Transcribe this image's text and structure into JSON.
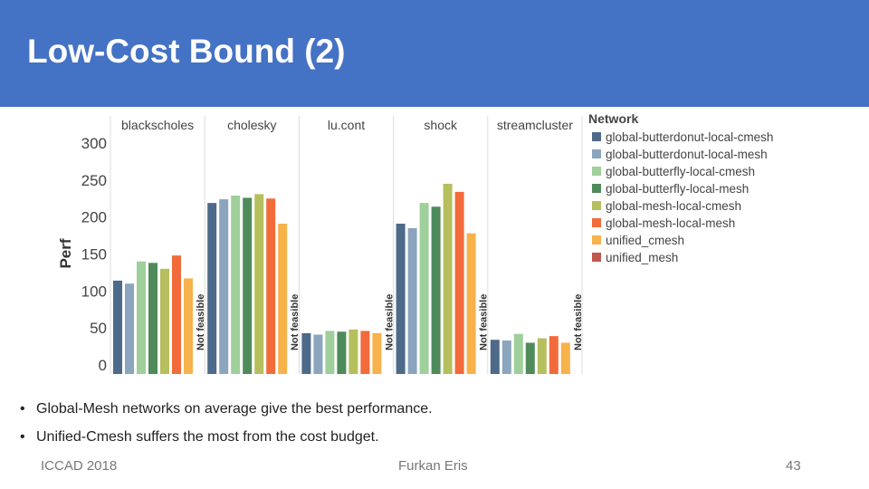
{
  "slide": {
    "title": "Low-Cost Bound (2)",
    "bullets": [
      "Global-Mesh networks on average give the best performance.",
      "Unified-Cmesh suffers the most from the cost budget."
    ],
    "footer_left": "ICCAD 2018",
    "footer_center": "Furkan Eris",
    "page_number": "43"
  },
  "colors": {
    "title_bar": "#4472c4"
  },
  "chart_data": {
    "type": "bar",
    "title": "",
    "ylabel": "Perf",
    "xlabel": "",
    "ylim": [
      0,
      300
    ],
    "yticks": [
      0,
      50,
      100,
      150,
      200,
      250,
      300
    ],
    "grid": "vertical panel dividers",
    "legend_title": "Network",
    "legend_position": "right",
    "categories": [
      "blackscholes",
      "cholesky",
      "lu.cont",
      "shock",
      "streamcluster"
    ],
    "series": [
      {
        "name": "global-butterdonut-local-cmesh",
        "color": "#4e6a8a",
        "values": [
          114,
          219,
          43,
          191,
          34
        ]
      },
      {
        "name": "global-butterdonut-local-mesh",
        "color": "#8aa5bd",
        "values": [
          110,
          224,
          41,
          185,
          33
        ]
      },
      {
        "name": "global-butterfly-local-cmesh",
        "color": "#9fcf9a",
        "values": [
          140,
          229,
          46,
          219,
          42
        ]
      },
      {
        "name": "global-butterfly-local-mesh",
        "color": "#4f8a5b",
        "values": [
          138,
          226,
          45,
          214,
          30
        ]
      },
      {
        "name": "global-mesh-local-cmesh",
        "color": "#b5bf5d",
        "values": [
          130,
          231,
          48,
          245,
          36
        ]
      },
      {
        "name": "global-mesh-local-mesh",
        "color": "#f26b3a",
        "values": [
          148,
          225,
          46,
          234,
          39
        ]
      },
      {
        "name": "unified_cmesh",
        "color": "#f7b24c",
        "values": [
          117,
          191,
          43,
          178,
          30
        ]
      },
      {
        "name": "unified_mesh",
        "color": "#c2574f",
        "values": [
          null,
          null,
          null,
          null,
          null
        ]
      }
    ],
    "annotations": {
      "null_value_label": "Not feasible"
    }
  }
}
